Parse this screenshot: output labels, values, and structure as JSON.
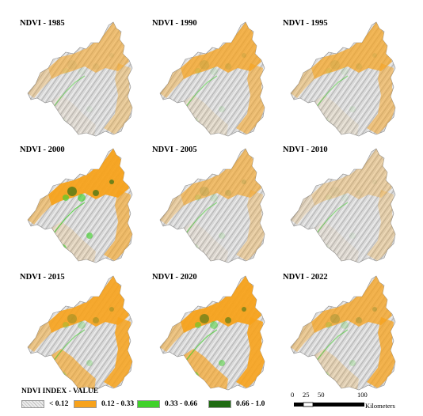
{
  "panels": [
    {
      "title": "NDVI - 1985"
    },
    {
      "title": "NDVI - 1990"
    },
    {
      "title": "NDVI - 1995"
    },
    {
      "title": "NDVI - 2000"
    },
    {
      "title": "NDVI - 2005"
    },
    {
      "title": "NDVI - 2010"
    },
    {
      "title": "NDVI - 2015"
    },
    {
      "title": "NDVI - 2020"
    },
    {
      "title": "NDVI - 2022"
    }
  ],
  "legend": {
    "title": "NDVI INDEX - VALUE",
    "items": [
      {
        "label": "< 0.12",
        "color": "#d6d6d6"
      },
      {
        "label": "0.12 - 0.33",
        "color": "#f7a21b"
      },
      {
        "label": "0.33 - 0.66",
        "color": "#3fd22a"
      },
      {
        "label": "0.66 - 1.0",
        "color": "#1f6b12"
      }
    ]
  },
  "scale_bar": {
    "ticks": [
      "0",
      "25",
      "50",
      "100"
    ],
    "unit": "Kilometers"
  },
  "colors": {
    "orange": "#f7a21b",
    "green": "#3fd22a",
    "dark_green": "#1f6b12",
    "relief": "#cfcfcf"
  }
}
